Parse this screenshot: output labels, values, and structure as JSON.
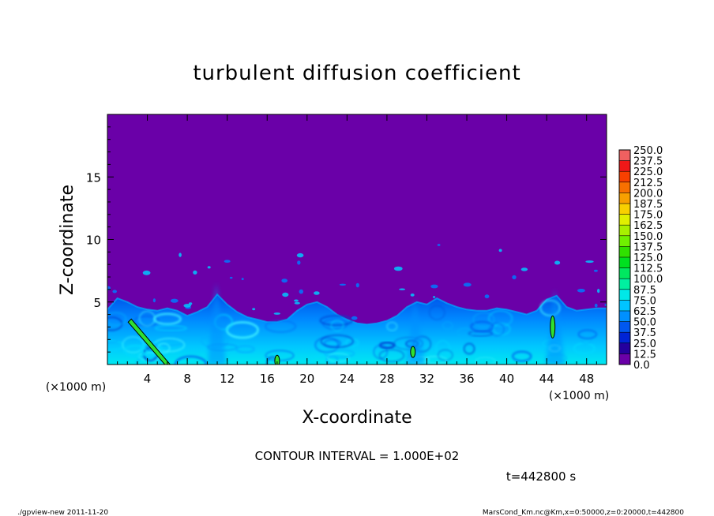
{
  "chart_data": {
    "type": "heatmap",
    "title": "turbulent diffusion coefficient",
    "xlabel": "X-coordinate",
    "ylabel": "Z-coordinate",
    "x_unit": "(×1000 m)",
    "y_unit": "(×1000 m)",
    "xlim": [
      0,
      50
    ],
    "ylim": [
      0,
      20
    ],
    "x_ticks": [
      "4",
      "8",
      "12",
      "16",
      "20",
      "24",
      "28",
      "32",
      "36",
      "40",
      "44",
      "48"
    ],
    "y_ticks": [
      "5",
      "10",
      "15"
    ],
    "colorbar": {
      "levels": [
        "0.0",
        "12.5",
        "25.0",
        "37.5",
        "50.0",
        "62.5",
        "75.0",
        "87.5",
        "100.0",
        "112.5",
        "125.0",
        "137.5",
        "150.0",
        "162.5",
        "175.0",
        "187.5",
        "200.0",
        "212.5",
        "225.0",
        "237.5",
        "250.0"
      ],
      "colors": [
        "#6a00a8",
        "#24009e",
        "#0024d6",
        "#0058f0",
        "#0090ff",
        "#00c4ff",
        "#00e8e8",
        "#00f0a0",
        "#00e860",
        "#00e020",
        "#30e000",
        "#70f000",
        "#a8f000",
        "#e0f000",
        "#f8d000",
        "#f8a000",
        "#f87000",
        "#f84000",
        "#f01818",
        "#f06060"
      ]
    },
    "background_color": "#6a00a8",
    "contour_interval_text": "CONTOUR INTERVAL = 1.000E+02",
    "time_text": "t=442800 s",
    "boundary_layer_top": [
      [
        0,
        4.4
      ],
      [
        1,
        5.3
      ],
      [
        2,
        5.0
      ],
      [
        3,
        4.6
      ],
      [
        4,
        4.4
      ],
      [
        5,
        4.3
      ],
      [
        6,
        4.5
      ],
      [
        7,
        4.3
      ],
      [
        8,
        3.9
      ],
      [
        9,
        4.2
      ],
      [
        10,
        4.6
      ],
      [
        11,
        5.6
      ],
      [
        12,
        4.8
      ],
      [
        13,
        4.2
      ],
      [
        14,
        3.8
      ],
      [
        15,
        3.6
      ],
      [
        16,
        3.4
      ],
      [
        17,
        3.4
      ],
      [
        18,
        3.6
      ],
      [
        19,
        4.3
      ],
      [
        20,
        4.8
      ],
      [
        21,
        5.0
      ],
      [
        22,
        4.6
      ],
      [
        23,
        4.0
      ],
      [
        24,
        3.6
      ],
      [
        25,
        3.3
      ],
      [
        26,
        3.2
      ],
      [
        27,
        3.3
      ],
      [
        28,
        3.5
      ],
      [
        29,
        3.9
      ],
      [
        30,
        4.6
      ],
      [
        31,
        5.0
      ],
      [
        32,
        4.8
      ],
      [
        33,
        5.3
      ],
      [
        34,
        4.9
      ],
      [
        35,
        4.6
      ],
      [
        36,
        4.4
      ],
      [
        37,
        4.3
      ],
      [
        38,
        4.3
      ],
      [
        39,
        4.5
      ],
      [
        40,
        4.4
      ],
      [
        41,
        4.2
      ],
      [
        42,
        4.0
      ],
      [
        43,
        4.3
      ],
      [
        44,
        5.2
      ],
      [
        45,
        5.5
      ],
      [
        46,
        4.6
      ],
      [
        47,
        4.3
      ],
      [
        48,
        4.4
      ],
      [
        49,
        4.5
      ],
      [
        50,
        4.5
      ]
    ],
    "high_value_regions": [
      {
        "x": 3.5,
        "z": 2.0,
        "value": 100
      },
      {
        "x": 30.6,
        "z": 1.0,
        "value": 100
      },
      {
        "x": 44.6,
        "z": 3.0,
        "value": 100
      },
      {
        "x": 17.0,
        "z": 0.3,
        "value": 100
      }
    ]
  },
  "footer": {
    "left": "./gpview-new   2011-11-20",
    "right": "MarsCond_Km.nc@Km,x=0:50000,z=0:20000,t=442800"
  }
}
